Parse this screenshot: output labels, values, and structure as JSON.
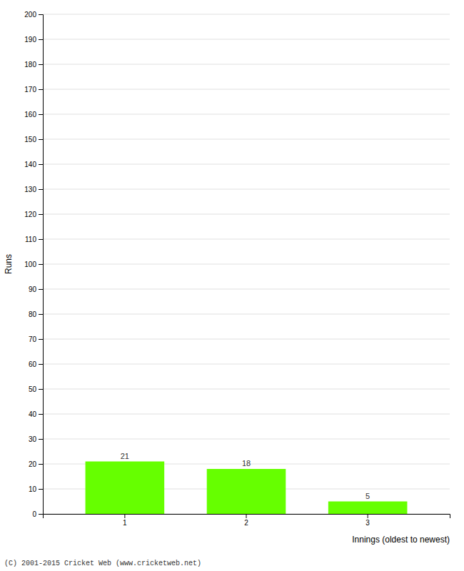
{
  "chart_data": {
    "type": "bar",
    "categories": [
      "1",
      "2",
      "3"
    ],
    "values": [
      21,
      18,
      5
    ],
    "color": "#66ff00",
    "ylabel": "Runs",
    "xlabel": "Innings (oldest to newest)",
    "footer": "(C) 2001-2015 Cricket Web (www.cricketweb.net)",
    "ylim": [
      0,
      200
    ],
    "yticks": [
      0,
      10,
      20,
      30,
      40,
      50,
      60,
      70,
      80,
      90,
      100,
      110,
      120,
      130,
      140,
      150,
      160,
      170,
      180,
      190,
      200
    ],
    "grid": true,
    "data_labels": true
  }
}
